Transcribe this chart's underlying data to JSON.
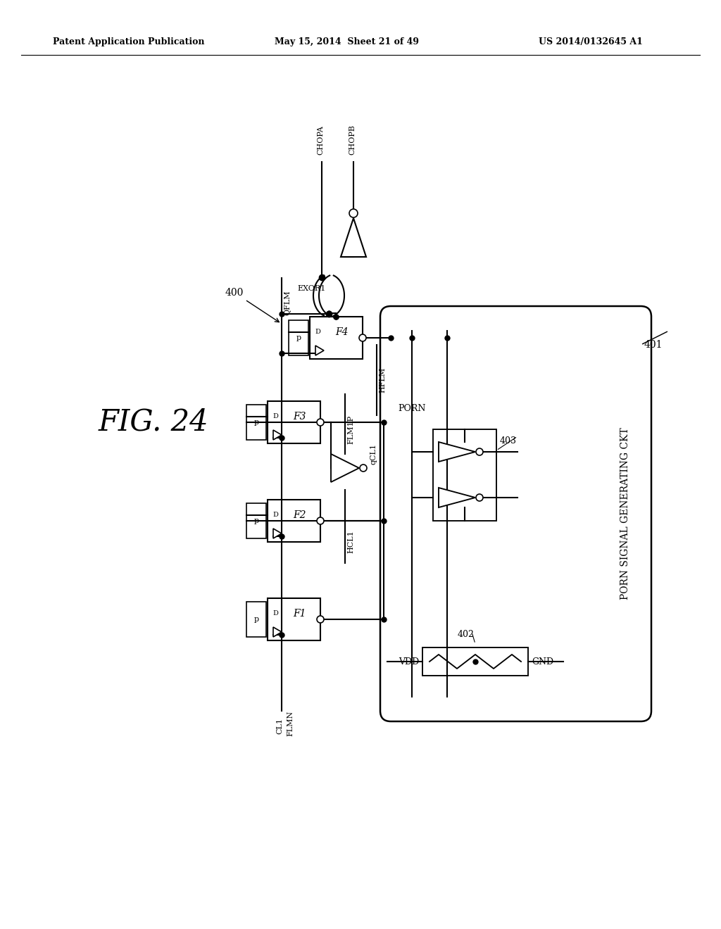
{
  "header_left": "Patent Application Publication",
  "header_mid": "May 15, 2014  Sheet 21 of 49",
  "header_right": "US 2014/0132645 A1",
  "fig_label": "FIG. 24",
  "bg_color": "#ffffff",
  "line_color": "#000000",
  "labels": {
    "CHOPA": "CHOPA",
    "CHOPB": "CHOPB",
    "EXOR1": "EXOR1",
    "QFLM": "QFLM",
    "HFLM": "HFLM",
    "FLM1P": "FLM1P",
    "QCL1": "qCL1",
    "HCL1": "HCL1",
    "CL1": "CL1",
    "FLMN": "FLMN",
    "PORN": "PORN",
    "VDD": "VDD",
    "GND": "GND",
    "porn_box": "PORN SIGNAL GENERATING CKT",
    "ref400": "400",
    "ref401": "401",
    "ref402": "402",
    "ref403": "403"
  }
}
